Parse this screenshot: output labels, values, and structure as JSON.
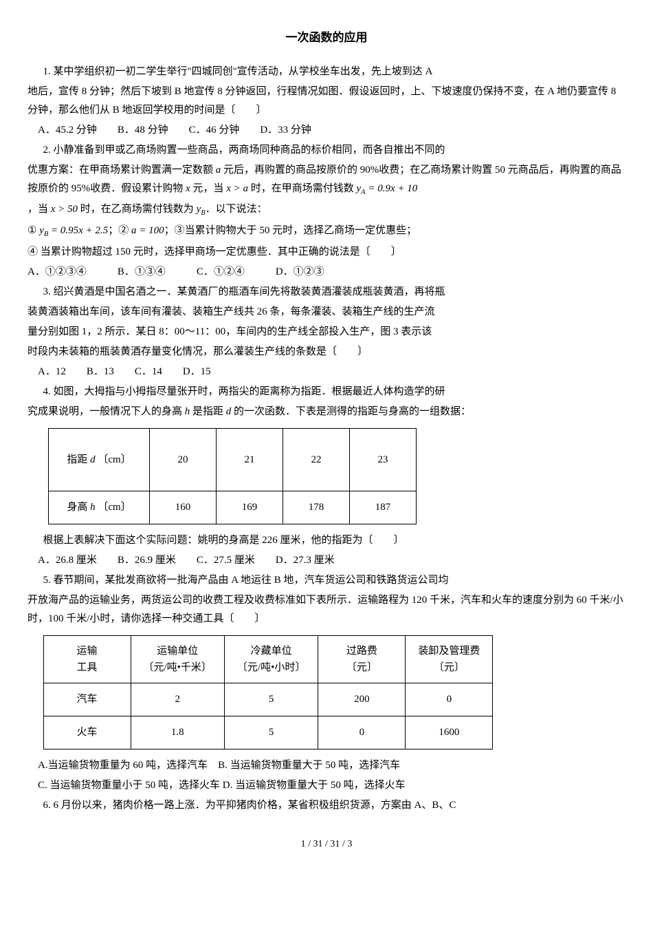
{
  "title": "一次函数的应用",
  "q1": {
    "stem_l1": "1. 某中学组织初一初二学生举行\"四城同创\"宣传活动，从学校坐车出发，先上坡到达 A",
    "stem_l2": "地后，宣传 8 分钟；然后下坡到 B 地宣传 8 分钟返回，行程情况如图．假设返回时，上、下坡速度仍保持不变，在 A 地仍要宣传 8 分钟，那么他们从 B 地返回学校用的时间是〔　　〕",
    "opts": "　A．45.2 分钟　　B．48 分钟　　C．46 分钟　　D．33 分钟"
  },
  "q2": {
    "stem_l1": "2. 小静准备到甲或乙商场购置一些商品，两商场同种商品的标价相同，而各自推出不同的",
    "stem_l2_pre": "优惠方案：在甲商场累计购置满一定数额 ",
    "stem_l2_post": " 元后，再购置的商品按原价的 90%收费；在乙商场累计购置 50 元商品后，再购置的商品按原价的 95%收费．假设累计购物 ",
    "stem_l2_post2": " 元，当 ",
    "stem_l2_post3": " 时，在甲商场需付钱数 ",
    "stem_l2_post4": "，当 ",
    "stem_l2_post5": " 时，在乙商场需付钱数为 ",
    "stem_l2_post6": "．以下说法：",
    "stmt_pre": "① ",
    "stmt1": "；② ",
    "stmt2": "；③当累计购物大于 50 元时，选择乙商场一定优惠些；",
    "stmt3": "④ 当累计购物超过 150 元时，选择甲商场一定优惠些．其中正确的说法是〔　　〕",
    "opts": "A．①②③④　　　B．①③④　　　C．①②④　　　D．①②③"
  },
  "q3": {
    "l1": "3. 绍兴黄酒是中国名酒之一．某黄酒厂的瓶酒车间先将散装黄酒灌装成瓶装黄酒，再将瓶",
    "l2": "装黄酒装箱出车间，该车间有灌装、装箱生产线共 26 条，每条灌装、装箱生产线的生产流",
    "l3": "量分别如图 1，2 所示．某日 8：00～11：00，车间内的生产线全部投入生产，图 3 表示该",
    "l4": "时段内未装箱的瓶装黄酒存量变化情况，那么灌装生产线的条数是〔　　〕",
    "opts": "　A．12　　B．13　　C．14　　D．15"
  },
  "q4": {
    "l1": "4. 如图，大拇指与小拇指尽量张开时，两指尖的距离称为指距．根据最近人体构造学的研",
    "l2_pre": "究成果说明，一般情况下人的身高 ",
    "l2_mid": " 是指距 ",
    "l2_post": " 的一次函数．下表是测得的指距与身高的一组数据：",
    "table": {
      "headers": [
        "20",
        "21",
        "22",
        "23"
      ],
      "row1_label_pre": "指距 ",
      "row1_label_unit": "〔cm〕",
      "row2_label_pre": "身高 ",
      "row2_label_unit": "〔cm〕",
      "row2": [
        "160",
        "169",
        "178",
        "187"
      ]
    },
    "after": "根据上表解决下面这个实际问题：姚明的身高是 226 厘米，他的指距为〔　　〕",
    "opts": "　A．26.8 厘米　　B．26.9 厘米　　C．27.5 厘米　　D．27.3 厘米"
  },
  "q5": {
    "l1": "5. 春节期间，某批发商欲将一批海产品由 A 地运往 B 地，汽车货运公司和铁路货运公司均",
    "l2": "开放海产品的运输业务，两货运公司的收费工程及收费标准如下表所示．运输路程为 120 千米，汽车和火车的速度分别为 60 千米/小时，100 千米/小时，请你选择一种交通工具〔　　〕",
    "table": {
      "header": [
        "运输\n工具",
        "运输单位\n〔元/吨•千米〕",
        "冷藏单位\n〔元/吨•小时〕",
        "过路费\n〔元〕",
        "装卸及管理费\n〔元〕"
      ],
      "rows": [
        [
          "汽车",
          "2",
          "5",
          "200",
          "0"
        ],
        [
          "火车",
          "1.8",
          "5",
          "0",
          "1600"
        ]
      ]
    },
    "optA": "　A.当运输货物重量为 60 吨，选择汽车　B. 当运输货物重量大于 50 吨，选择汽车",
    "optC": "　C. 当运输货物重量小于 50 吨，选择火车 D. 当运输货物重量大于 50 吨，选择火车"
  },
  "q6": {
    "l1": "6. 6 月份以来，猪肉价格一路上涨．为平抑猪肉价格，某省积极组织货源，方案由 A、B、C"
  },
  "footer": "1 / 31 / 31 / 3"
}
